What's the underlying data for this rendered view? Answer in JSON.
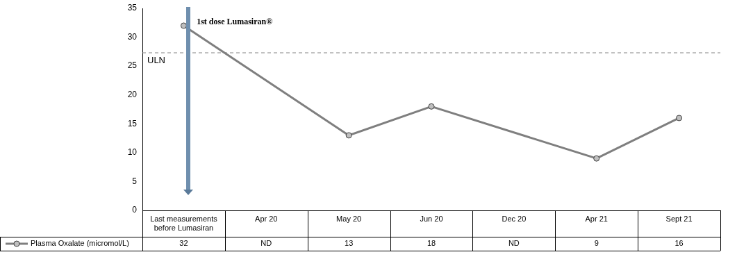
{
  "chart_data": {
    "type": "line",
    "categories": [
      "Last measurements before Lumasiran",
      "Apr 20",
      "May 20",
      "Jun 20",
      "Dec 20",
      "Apr 21",
      "Sept 21"
    ],
    "series": [
      {
        "name": "Plasma Oxalate (micromol/L)",
        "color": "#7f7f7f",
        "values": [
          32,
          null,
          13,
          18,
          null,
          9,
          16
        ],
        "value_labels": [
          "32",
          "ND",
          "13",
          "18",
          "ND",
          "9",
          "16"
        ]
      }
    ],
    "ylim": [
      0,
      35
    ],
    "yticks": [
      0,
      5,
      10,
      15,
      20,
      25,
      30,
      35
    ],
    "grid": false,
    "legend": "bottom",
    "marker": "circle",
    "line_style": "solid",
    "ref_lines": [
      {
        "axis": "y",
        "value": 27.3,
        "label": "ULN",
        "color": "#808080",
        "line_style": "dashed"
      }
    ],
    "annotations": [
      "1st dose Lumasiran®"
    ]
  }
}
